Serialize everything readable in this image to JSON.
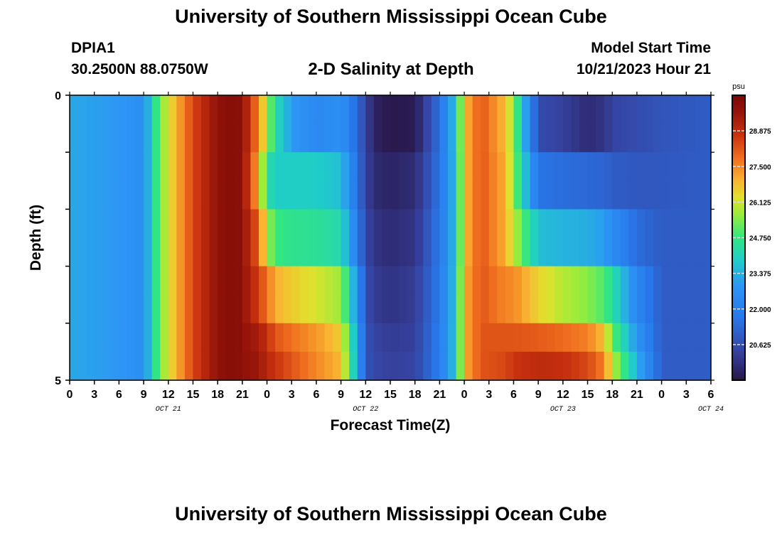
{
  "header": {
    "title": "University of Southern Mississippi Ocean Cube",
    "station_id": "DPIA1",
    "station_coords": "30.2500N  88.0750W",
    "plot_title": "2-D Salinity at Depth",
    "model_start_label": "Model Start Time",
    "model_start_value": "10/21/2023 Hour 21"
  },
  "footer": {
    "repeated_title": "University of Southern Mississippi Ocean Cube"
  },
  "chart_data": {
    "type": "heatmap",
    "title": "2-D Salinity at Depth",
    "xlabel": "Forecast Time(Z)",
    "ylabel": "Depth (ft)",
    "ylim": [
      0,
      5
    ],
    "y_tick_labels": [
      "0",
      "5"
    ],
    "x_tick_labels": [
      "0",
      "3",
      "6",
      "9",
      "12",
      "15",
      "18",
      "21",
      "0",
      "3",
      "6",
      "9",
      "12",
      "15",
      "18",
      "21",
      "0",
      "3",
      "6",
      "9",
      "12",
      "15",
      "18",
      "21",
      "0",
      "3",
      "6"
    ],
    "day_labels": [
      {
        "label": "OCT 21",
        "at_hour": 12
      },
      {
        "label": "OCT 22",
        "at_hour": 36
      },
      {
        "label": "OCT 23",
        "at_hour": 60
      },
      {
        "label": "OCT 24",
        "at_hour": 78
      }
    ],
    "x_hours_range": [
      0,
      78
    ],
    "colorbar": {
      "unit": "psu",
      "min": 19.25,
      "max": 30.25,
      "tick_labels": [
        "28.875",
        "27.500",
        "26.125",
        "24.750",
        "23.375",
        "22.000",
        "20.625"
      ],
      "tick_values": [
        28.875,
        27.5,
        26.125,
        24.75,
        23.375,
        22.0,
        20.625
      ]
    },
    "depth_rows_ft": [
      0.25,
      0.75,
      1.25,
      1.75,
      2.25,
      2.75,
      3.25,
      3.75,
      4.25,
      4.75
    ],
    "keyframe_hours": [
      0,
      6,
      9,
      11,
      13,
      15,
      18,
      20,
      21,
      23,
      24,
      25,
      27,
      30,
      33,
      35,
      36,
      37,
      39,
      42,
      45,
      47,
      48,
      50,
      53,
      54,
      57,
      60,
      63,
      65,
      66,
      69,
      72,
      78
    ],
    "salinity_psu": [
      [
        23.2,
        22.9,
        22.6,
        25.4,
        27.0,
        28.4,
        29.7,
        30.0,
        29.7,
        27.5,
        25.8,
        24.3,
        23.0,
        22.3,
        22.7,
        21.3,
        20.4,
        19.6,
        19.3,
        19.4,
        21.5,
        23.8,
        26.8,
        28.2,
        26.8,
        25.5,
        20.6,
        20.3,
        19.8,
        20.0,
        20.4,
        20.6,
        20.8,
        21.0
      ],
      [
        23.2,
        22.9,
        22.6,
        25.4,
        27.0,
        28.4,
        29.7,
        30.0,
        29.7,
        27.5,
        25.8,
        24.3,
        23.0,
        22.3,
        22.7,
        21.3,
        20.4,
        19.6,
        19.3,
        19.4,
        21.5,
        23.8,
        26.8,
        28.2,
        26.8,
        25.5,
        20.6,
        20.3,
        19.8,
        20.0,
        20.4,
        20.6,
        20.8,
        21.0
      ],
      [
        23.2,
        22.9,
        22.6,
        25.4,
        27.0,
        28.4,
        29.7,
        30.0,
        29.7,
        27.0,
        24.4,
        23.9,
        23.9,
        23.9,
        23.6,
        21.5,
        20.4,
        19.8,
        19.6,
        19.8,
        21.6,
        23.7,
        26.8,
        28.2,
        27.0,
        25.5,
        21.6,
        21.4,
        21.3,
        21.2,
        21.0,
        20.9,
        20.9,
        21.0
      ],
      [
        23.2,
        22.9,
        22.6,
        25.4,
        27.0,
        28.4,
        29.7,
        30.0,
        29.7,
        27.0,
        24.4,
        23.9,
        23.9,
        23.9,
        23.6,
        21.5,
        20.4,
        19.8,
        19.6,
        19.8,
        21.6,
        23.7,
        26.8,
        28.2,
        27.0,
        25.5,
        21.6,
        21.4,
        21.3,
        21.2,
        21.0,
        20.9,
        20.9,
        21.0
      ],
      [
        23.2,
        22.9,
        22.6,
        25.4,
        27.0,
        28.4,
        29.7,
        30.0,
        29.7,
        28.0,
        25.9,
        24.8,
        24.6,
        24.5,
        24.2,
        21.9,
        20.5,
        20.0,
        19.8,
        20.0,
        21.7,
        23.7,
        26.8,
        28.2,
        27.0,
        26.0,
        23.6,
        23.4,
        23.3,
        23.0,
        22.5,
        21.4,
        21.0,
        21.0
      ],
      [
        23.2,
        22.9,
        22.6,
        25.4,
        27.0,
        28.4,
        29.7,
        30.0,
        29.7,
        28.0,
        25.9,
        24.8,
        24.6,
        24.5,
        24.2,
        21.9,
        20.5,
        20.0,
        19.8,
        20.0,
        21.7,
        23.7,
        26.8,
        28.2,
        27.0,
        26.0,
        23.6,
        23.4,
        23.3,
        23.0,
        22.5,
        21.4,
        21.0,
        21.0
      ],
      [
        23.2,
        22.9,
        22.6,
        25.4,
        27.0,
        28.4,
        29.7,
        30.0,
        29.7,
        28.5,
        27.8,
        27.0,
        26.6,
        26.2,
        25.7,
        22.6,
        20.7,
        20.2,
        20.0,
        20.2,
        21.8,
        23.8,
        27.0,
        28.2,
        27.5,
        27.5,
        26.5,
        25.9,
        25.5,
        25.0,
        24.4,
        22.3,
        21.0,
        21.0
      ],
      [
        23.2,
        22.9,
        22.6,
        25.4,
        27.0,
        28.4,
        29.7,
        30.0,
        29.7,
        28.5,
        27.8,
        27.0,
        26.6,
        26.2,
        25.7,
        22.6,
        20.7,
        20.2,
        20.0,
        20.2,
        21.8,
        23.8,
        27.0,
        28.2,
        27.5,
        27.5,
        26.5,
        25.9,
        25.5,
        25.0,
        24.4,
        22.3,
        21.0,
        21.0
      ],
      [
        23.2,
        22.9,
        22.6,
        25.4,
        27.0,
        28.4,
        29.7,
        30.0,
        29.7,
        29.3,
        28.8,
        28.2,
        27.8,
        27.3,
        26.6,
        23.0,
        20.8,
        20.4,
        20.2,
        20.3,
        21.9,
        23.8,
        27.0,
        28.2,
        28.2,
        28.2,
        28.1,
        27.9,
        27.6,
        26.8,
        25.2,
        22.8,
        21.0,
        21.0
      ],
      [
        23.2,
        22.9,
        22.6,
        25.4,
        27.0,
        28.4,
        29.7,
        30.0,
        29.7,
        29.5,
        29.0,
        28.7,
        28.2,
        27.5,
        26.9,
        23.1,
        20.8,
        20.5,
        20.3,
        20.4,
        21.9,
        23.8,
        27.0,
        28.2,
        28.4,
        28.7,
        28.9,
        28.8,
        28.4,
        27.6,
        26.0,
        23.4,
        21.0,
        21.0
      ]
    ]
  }
}
